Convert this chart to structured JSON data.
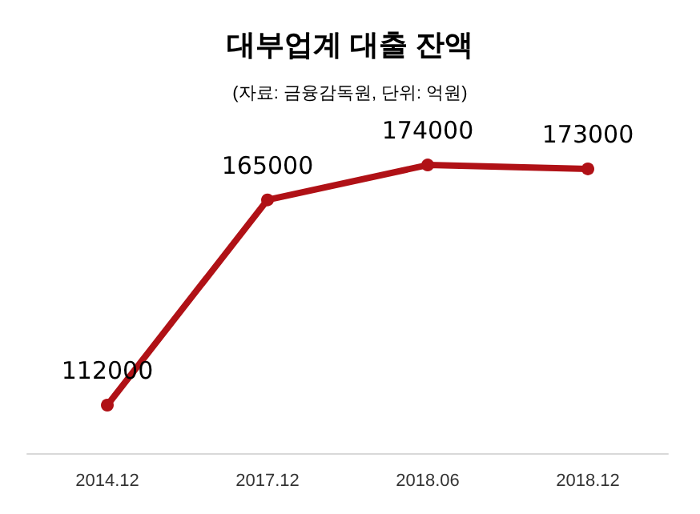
{
  "chart_data": {
    "type": "line",
    "title": "대부업계 대출 잔액",
    "subtitle": "(자료: 금융감독원, 단위: 억원)",
    "categories": [
      "2014.12",
      "2017.12",
      "2018.06",
      "2018.12"
    ],
    "series": [
      {
        "color": "#b01116",
        "values": [
          112000,
          165000,
          174000,
          173000
        ]
      }
    ],
    "data_labels": true,
    "marker": "circle",
    "line_style": "solid",
    "grid": false,
    "tick_labels": "x"
  }
}
